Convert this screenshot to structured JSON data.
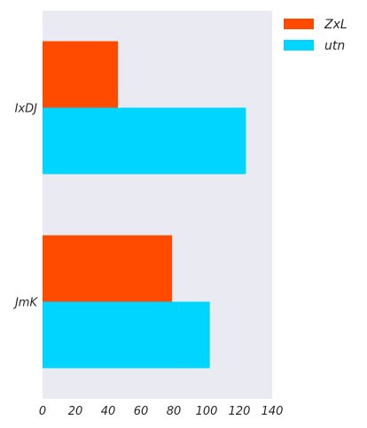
{
  "chart_data": {
    "type": "bar",
    "orientation": "horizontal",
    "categories": [
      "IxDJ",
      "JmK"
    ],
    "series": [
      {
        "name": "ZxL",
        "values": [
          46,
          79
        ],
        "color": "#ff4b00"
      },
      {
        "name": "utn",
        "values": [
          124,
          102
        ],
        "color": "#00d5ff"
      }
    ],
    "xlim": [
      0,
      140
    ],
    "xticks": [
      0,
      20,
      40,
      60,
      80,
      100,
      120,
      140
    ],
    "grid": false,
    "legend": "top-right",
    "title": "",
    "xlabel": "",
    "ylabel": ""
  }
}
